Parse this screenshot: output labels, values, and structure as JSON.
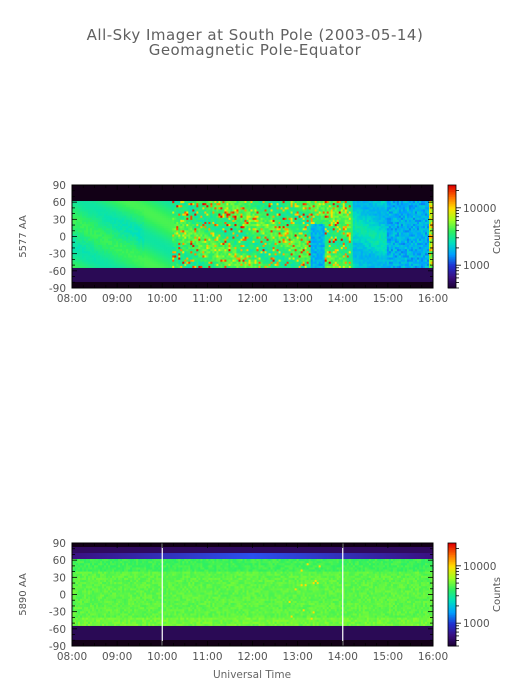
{
  "title": "All-Sky Imager at South Pole (2003-05-14)",
  "subtitle": "Geomagnetic Pole-Equator",
  "xlabel": "Universal Time",
  "colors": {
    "background": "#ffffff",
    "axis": "#000000",
    "text": "#555555",
    "colormap": [
      "#1a0030",
      "#3a1080",
      "#2030d0",
      "#00a0ff",
      "#00e0c0",
      "#30f060",
      "#a0ff20",
      "#ffe000",
      "#ff7000",
      "#e00000"
    ]
  },
  "chart_data": [
    {
      "type": "heatmap",
      "ylabel": "5577 AA",
      "x_ticks": [
        "08:00",
        "09:00",
        "10:00",
        "11:00",
        "12:00",
        "13:00",
        "14:00",
        "15:00",
        "16:00"
      ],
      "xlim": [
        "08:00",
        "16:00"
      ],
      "y_ticks": [
        "90",
        "60",
        "30",
        "0",
        "-30",
        "-60",
        "-90"
      ],
      "ylim": [
        -90,
        90
      ],
      "valid_lat_range": [
        -55,
        62
      ],
      "colorbar": {
        "label": "Counts",
        "ticks": [
          "10000",
          "1000"
        ],
        "scale": "log",
        "range": [
          400,
          25000
        ]
      },
      "vertical_markers": []
    },
    {
      "type": "heatmap",
      "ylabel": "5890 AA",
      "x_ticks": [
        "08:00",
        "09:00",
        "10:00",
        "11:00",
        "12:00",
        "13:00",
        "14:00",
        "15:00",
        "16:00"
      ],
      "xlim": [
        "08:00",
        "16:00"
      ],
      "y_ticks": [
        "90",
        "60",
        "30",
        "0",
        "-30",
        "-60",
        "-90"
      ],
      "ylim": [
        -90,
        90
      ],
      "valid_lat_range": [
        -55,
        62
      ],
      "colorbar": {
        "label": "Counts",
        "ticks": [
          "10000",
          "1000"
        ],
        "scale": "log",
        "range": [
          400,
          25000
        ]
      },
      "vertical_markers": [
        "10:00",
        "14:00"
      ]
    }
  ]
}
